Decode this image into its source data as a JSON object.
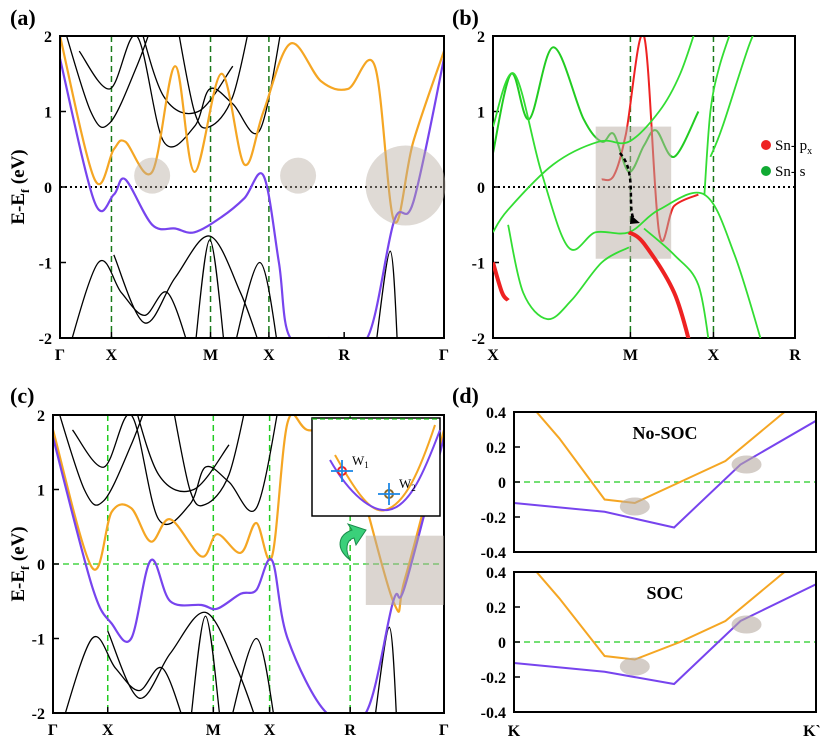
{
  "chart_data": [
    {
      "id": "a",
      "type": "line",
      "panel_label": "(a)",
      "ylabel": "E-E",
      "ylabel_sub": "f",
      "ylabel_unit": " (eV)",
      "ylim": [
        -2,
        2
      ],
      "yticks": [
        2,
        1,
        0,
        -1,
        -2
      ],
      "xticks": [
        "Γ",
        "X",
        "M",
        "X",
        "R",
        "Γ"
      ],
      "grid": "dashed verticals at X, M, X; dotted Fermi level",
      "series": [
        {
          "name": "orange band",
          "color": "#f5a623",
          "x": [
            0,
            0.09,
            0.14,
            0.17,
            0.24,
            0.3,
            0.35,
            0.42,
            0.48,
            0.53,
            0.6,
            0.68,
            0.75,
            0.82,
            0.87,
            0.92,
            1.0
          ],
          "y": [
            2.0,
            0.1,
            0.5,
            0.6,
            0.2,
            1.6,
            0.2,
            1.5,
            0.3,
            1.0,
            1.9,
            1.4,
            1.3,
            1.6,
            -0.45,
            0.6,
            1.8
          ]
        },
        {
          "name": "purple band",
          "color": "#7744ee",
          "x": [
            0,
            0.09,
            0.14,
            0.17,
            0.24,
            0.3,
            0.35,
            0.42,
            0.48,
            0.53,
            0.57,
            0.6,
            0.7,
            0.8,
            0.87,
            0.92,
            1.0
          ],
          "y": [
            1.7,
            -0.2,
            -0.1,
            0.1,
            -0.5,
            -0.55,
            -0.6,
            -0.4,
            -0.15,
            0.15,
            -1.0,
            -2.0,
            -2.0,
            -2.0,
            -0.45,
            -0.2,
            1.7
          ]
        }
      ]
    },
    {
      "id": "b",
      "type": "line",
      "panel_label": "(b)",
      "ylim": [
        -2,
        2
      ],
      "yticks": [
        2,
        1,
        0,
        -1,
        -2
      ],
      "xticks": [
        "X",
        "M",
        "X",
        "R"
      ],
      "legend": [
        {
          "label": "Sn- p",
          "sub": "x",
          "color": "#ee2222"
        },
        {
          "label": "Sn- s",
          "sub": "",
          "color": "#11aa33"
        }
      ],
      "series": [
        {
          "name": "Sn-s weighted band",
          "color": "#22cc22",
          "x": [
            0,
            0.06,
            0.12,
            0.2,
            0.3,
            0.36,
            0.4,
            0.45,
            0.5,
            0.54,
            0.6,
            0.68
          ],
          "y": [
            0.45,
            1.5,
            0.9,
            1.85,
            0.9,
            0.6,
            0.7,
            0.2,
            0.55,
            0.75,
            0.4,
            1.0
          ]
        },
        {
          "name": "Sn-px weighted band",
          "color": "#ee2222",
          "x": [
            0.36,
            0.4,
            0.44,
            0.5,
            0.55,
            0.6,
            0.68
          ],
          "y": [
            0.1,
            0.15,
            0.7,
            2.0,
            -0.6,
            -0.25,
            -0.1
          ]
        }
      ]
    },
    {
      "id": "c",
      "type": "line",
      "panel_label": "(c)",
      "ylabel": "E-E",
      "ylabel_sub": "f",
      "ylabel_unit": " (eV)",
      "ylim": [
        -2,
        2
      ],
      "yticks": [
        2,
        1,
        0,
        -1,
        -2
      ],
      "xticks": [
        "Γ",
        "X",
        "M",
        "X",
        "R",
        "Γ"
      ],
      "inset_labels": [
        "W",
        "W"
      ],
      "inset_subs": [
        "1",
        "2"
      ],
      "series": [
        {
          "name": "orange band",
          "color": "#f5a623",
          "x": [
            0,
            0.1,
            0.15,
            0.2,
            0.25,
            0.3,
            0.38,
            0.42,
            0.48,
            0.52,
            0.56,
            0.6,
            0.65,
            0.75,
            0.87,
            0.9,
            1.0
          ],
          "y": [
            1.8,
            -0.05,
            0.7,
            0.75,
            0.3,
            0.6,
            0.1,
            0.4,
            0.15,
            0.55,
            0.1,
            1.9,
            1.8,
            1.6,
            -0.5,
            -0.2,
            1.8
          ]
        },
        {
          "name": "purple band",
          "color": "#7744ee",
          "x": [
            0,
            0.1,
            0.15,
            0.2,
            0.25,
            0.3,
            0.38,
            0.42,
            0.48,
            0.52,
            0.56,
            0.6,
            0.7,
            0.8,
            0.87,
            0.9,
            1.0
          ],
          "y": [
            1.7,
            -0.3,
            -0.8,
            -1.0,
            0.05,
            -0.5,
            -0.55,
            -0.6,
            -0.4,
            -0.35,
            0.05,
            -1.0,
            -2.0,
            -2.0,
            -0.5,
            -0.3,
            1.7
          ]
        }
      ]
    },
    {
      "id": "d",
      "type": "line",
      "panel_label": "(d)",
      "subplots": [
        {
          "title": "No-SOC",
          "ylim": [
            -0.4,
            0.4
          ],
          "yticks": [
            "0.4",
            "0.2",
            "0",
            "-0.2",
            "-0.4"
          ],
          "series": [
            {
              "name": "orange band",
              "color": "#f5a623",
              "x": [
                0,
                0.15,
                0.3,
                0.4,
                0.55,
                0.7,
                1.0
              ],
              "y": [
                0.55,
                0.25,
                -0.1,
                -0.12,
                0.0,
                0.12,
                0.55
              ]
            },
            {
              "name": "purple band",
              "color": "#7744ee",
              "x": [
                0,
                0.3,
                0.53,
                0.75,
                1.0
              ],
              "y": [
                -0.12,
                -0.17,
                -0.26,
                0.1,
                0.35
              ]
            }
          ]
        },
        {
          "title": "SOC",
          "ylim": [
            -0.4,
            0.4
          ],
          "yticks": [
            "0.4",
            "0.2",
            "0",
            "-0.2",
            "-0.4"
          ],
          "series": [
            {
              "name": "orange band",
              "color": "#f5a623",
              "x": [
                0,
                0.15,
                0.3,
                0.4,
                0.55,
                0.7,
                1.0
              ],
              "y": [
                0.55,
                0.25,
                -0.08,
                -0.1,
                0.0,
                0.12,
                0.55
              ]
            },
            {
              "name": "purple band",
              "color": "#7744ee",
              "x": [
                0,
                0.3,
                0.53,
                0.75,
                1.0
              ],
              "y": [
                -0.12,
                -0.17,
                -0.24,
                0.12,
                0.33
              ]
            }
          ]
        }
      ],
      "xticks": [
        "K",
        "K`"
      ]
    }
  ]
}
